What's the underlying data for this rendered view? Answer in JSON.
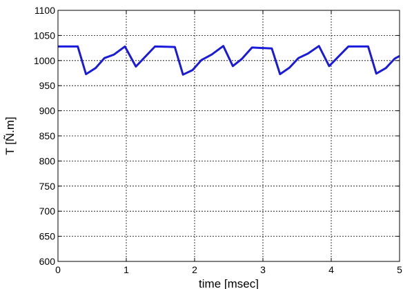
{
  "chart_data": {
    "type": "line",
    "xlabel": "time [msec]",
    "ylabel": "T [Ñ.m]",
    "xlim": [
      0,
      5
    ],
    "ylim": [
      600,
      1100
    ],
    "xticks": [
      0,
      1,
      2,
      3,
      4,
      5
    ],
    "yticks": [
      600,
      650,
      700,
      750,
      800,
      850,
      900,
      950,
      1000,
      1050,
      1100
    ],
    "grid": true,
    "line_color": "#1a1adc",
    "series": [
      {
        "x": [
          0,
          0.29,
          0.41,
          0.55,
          0.68,
          0.82,
          0.98,
          1.14,
          1.42,
          1.71,
          1.83,
          1.97,
          2.1,
          2.25,
          2.42,
          2.56,
          2.69,
          2.84,
          3.13,
          3.25,
          3.39,
          3.52,
          3.66,
          3.82,
          3.97,
          4.25,
          4.54,
          4.66,
          4.8,
          4.93,
          5.0
        ],
        "y": [
          1028,
          1028,
          973,
          985,
          1005,
          1012,
          1028,
          988,
          1028,
          1027,
          972,
          981,
          1001,
          1012,
          1029,
          989,
          1003,
          1026,
          1024,
          973,
          986,
          1005,
          1014,
          1029,
          989,
          1028,
          1028,
          974,
          985,
          1004,
          1009
        ]
      }
    ]
  }
}
